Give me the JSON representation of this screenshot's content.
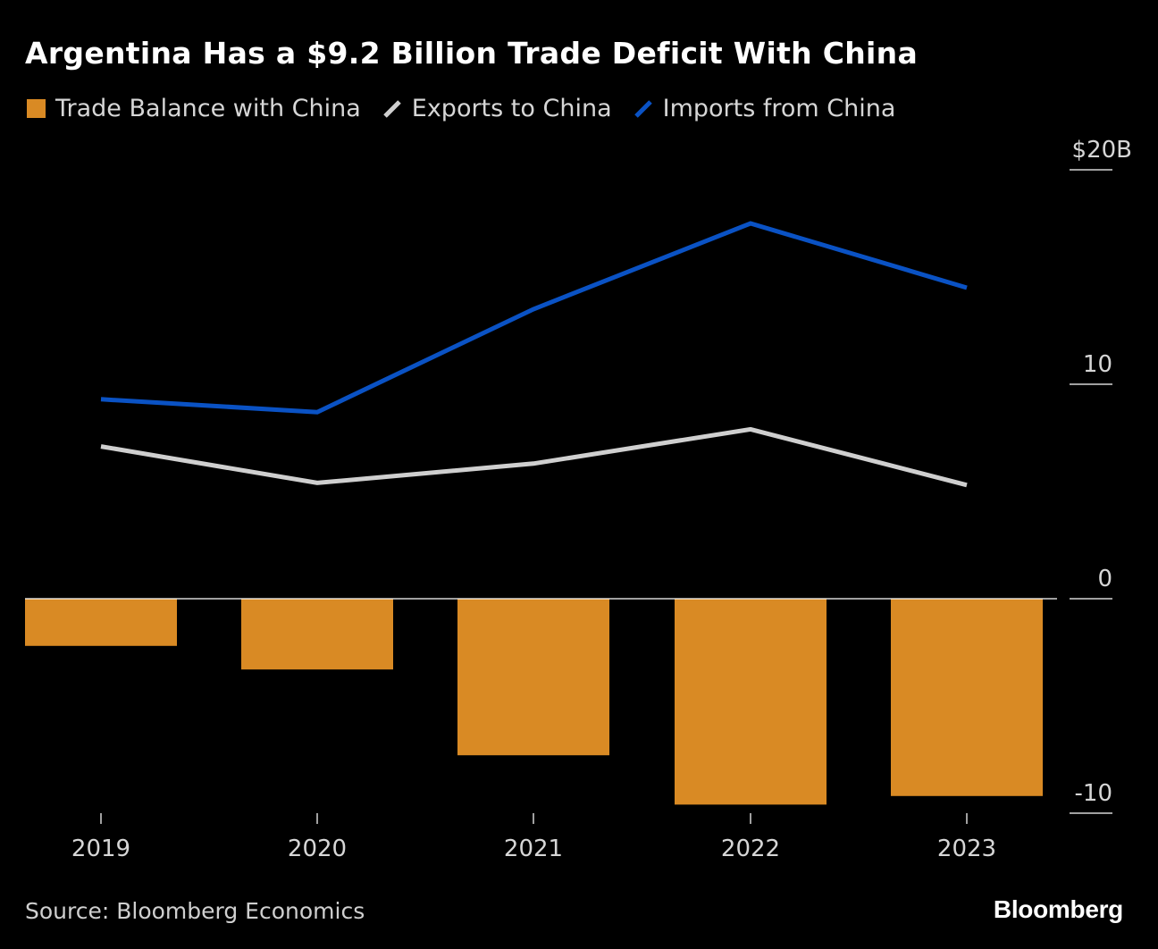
{
  "title": "Argentina Has a $9.2 Billion Trade Deficit With China",
  "legend": [
    {
      "label": "Trade Balance with China",
      "kind": "square",
      "color": "#d98a24"
    },
    {
      "label": "Exports to China",
      "kind": "line",
      "color": "#cfcfcf"
    },
    {
      "label": "Imports from China",
      "kind": "line",
      "color": "#0a52c4"
    }
  ],
  "source": "Source: Bloomberg Economics",
  "brand": "Bloomberg",
  "chart_data": {
    "type": "bar+line",
    "title": "Argentina Has a $9.2 Billion Trade Deficit With China",
    "categories": [
      "2019",
      "2020",
      "2021",
      "2022",
      "2023"
    ],
    "ylim": [
      -10,
      20
    ],
    "y_ticks": [
      {
        "value": 20,
        "label": "$20B"
      },
      {
        "value": 10,
        "label": "10"
      },
      {
        "value": 0,
        "label": "0"
      },
      {
        "value": -10,
        "label": "-10"
      }
    ],
    "series": [
      {
        "name": "Trade Balance with China",
        "type": "bar",
        "color": "#d98a24",
        "values": [
          -2.2,
          -3.3,
          -7.3,
          -9.6,
          -9.2
        ]
      },
      {
        "name": "Exports to China",
        "type": "line",
        "color": "#cfcfcf",
        "values": [
          7.1,
          5.4,
          6.3,
          7.9,
          5.3
        ]
      },
      {
        "name": "Imports from China",
        "type": "line",
        "color": "#0a52c4",
        "values": [
          9.3,
          8.7,
          13.5,
          17.5,
          14.5
        ]
      }
    ]
  }
}
